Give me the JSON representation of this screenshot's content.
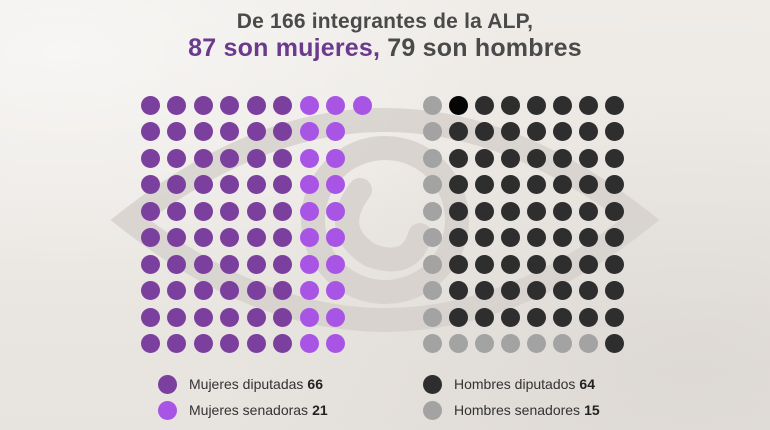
{
  "title": {
    "line1": "De 166 integrantes de la ALP,",
    "line2_women": "87 son mujeres,",
    "line2_men": " 79 son hombres"
  },
  "colors": {
    "mujeres_diputadas": "#7b3f9e",
    "mujeres_senadoras": "#a855e6",
    "hombres_diputados": "#2e2e2e",
    "hombres_senadores": "#a3a3a3",
    "highlight_dot": "#050505"
  },
  "chart_data": {
    "type": "dot-grid",
    "total": 166,
    "groups": [
      {
        "name": "Mujeres",
        "total": 87,
        "series": [
          {
            "key": "mujeres_diputadas",
            "name": "Mujeres diputadas",
            "value": 66
          },
          {
            "key": "mujeres_senadoras",
            "name": "Mujeres senadoras",
            "value": 21
          }
        ]
      },
      {
        "name": "Hombres",
        "total": 79,
        "series": [
          {
            "key": "hombres_diputados",
            "name": "Hombres diputados",
            "value": 64
          },
          {
            "key": "hombres_senadores",
            "name": "Hombres senadores",
            "value": 15
          }
        ]
      }
    ]
  },
  "legend": [
    {
      "key": "mujeres_diputadas",
      "label": "Mujeres diputadas",
      "value": "66"
    },
    {
      "key": "mujeres_senadoras",
      "label": "Mujeres senadoras",
      "value": "21"
    },
    {
      "key": "hombres_diputados",
      "label": "Hombres diputados",
      "value": "64"
    },
    {
      "key": "hombres_senadores",
      "label": "Hombres senadores",
      "value": "15"
    }
  ]
}
